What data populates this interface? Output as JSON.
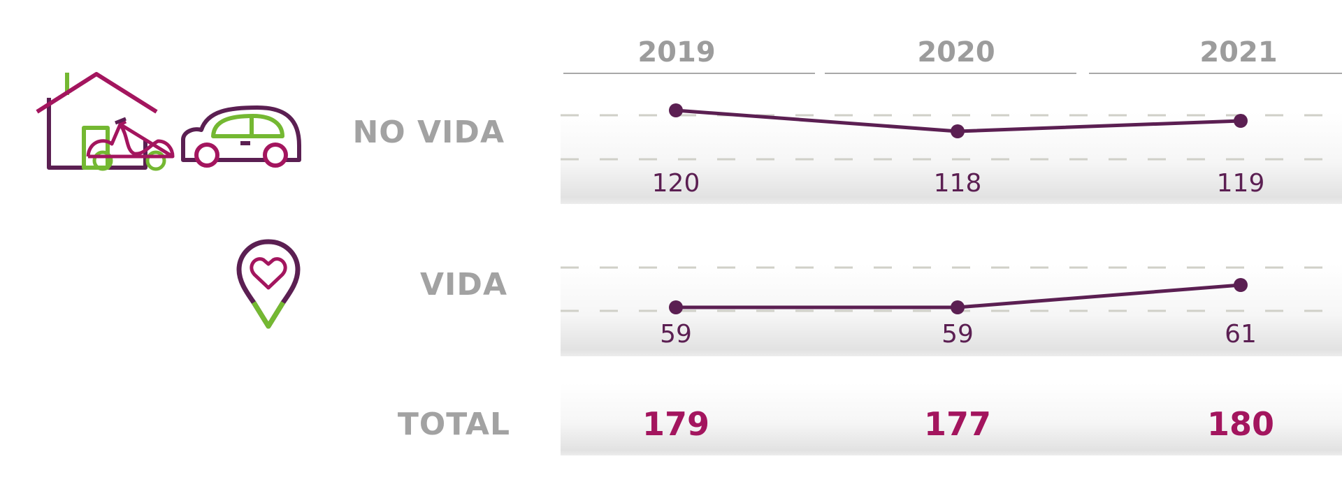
{
  "colors": {
    "line": "#5b1f52",
    "total_text": "#a3155e",
    "label_text": "#a2a2a2",
    "icon_purple": "#5b1f52",
    "icon_magenta": "#a3155e",
    "icon_green": "#74b832",
    "grid_dash": "#d0d0c8"
  },
  "icons": [
    "house-icon",
    "scooter-icon",
    "car-icon",
    "map-pin-heart-icon"
  ],
  "years": [
    "2019",
    "2020",
    "2021"
  ],
  "rows": [
    {
      "label": "NO VIDA",
      "values": [
        "120",
        "118",
        "119"
      ]
    },
    {
      "label": "VIDA",
      "values": [
        "59",
        "59",
        "61"
      ]
    }
  ],
  "total": {
    "label": "TOTAL",
    "values": [
      "179",
      "177",
      "180"
    ]
  },
  "chart_data": [
    {
      "type": "line",
      "title": "NO VIDA",
      "categories": [
        "2019",
        "2020",
        "2021"
      ],
      "values": [
        120,
        118,
        119
      ],
      "grid": true
    },
    {
      "type": "line",
      "title": "VIDA",
      "categories": [
        "2019",
        "2020",
        "2021"
      ],
      "values": [
        59,
        59,
        61
      ],
      "grid": true
    },
    {
      "type": "table",
      "title": "TOTAL",
      "categories": [
        "2019",
        "2020",
        "2021"
      ],
      "values": [
        179,
        177,
        180
      ]
    }
  ]
}
